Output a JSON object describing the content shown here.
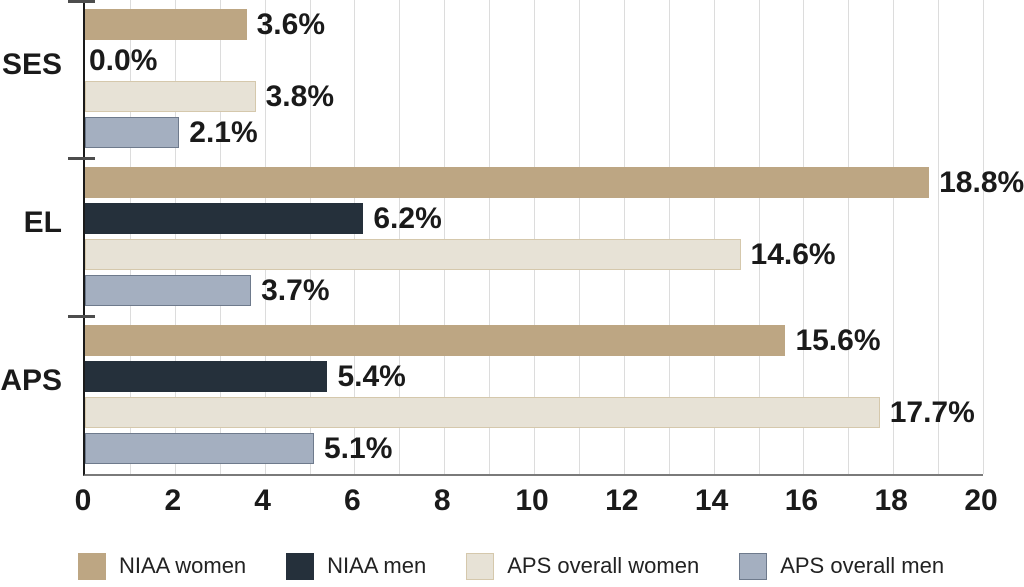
{
  "chart_data": {
    "type": "bar",
    "orientation": "horizontal",
    "categories": [
      "SES",
      "EL",
      "APS"
    ],
    "series": [
      {
        "name": "NIAA women",
        "color": "#bda683",
        "border_color": "#bda683",
        "values": [
          3.6,
          18.8,
          15.6
        ]
      },
      {
        "name": "NIAA men",
        "color": "#25303b",
        "border_color": "#25303b",
        "values": [
          0.0,
          6.2,
          5.4
        ]
      },
      {
        "name": "APS overall women",
        "color": "#e7e2d6",
        "border_color": "#d5c8ac",
        "values": [
          3.8,
          14.6,
          17.7
        ]
      },
      {
        "name": "APS overall men",
        "color": "#a4afc0",
        "border_color": "#6e7a8c",
        "values": [
          2.1,
          3.7,
          5.1
        ]
      }
    ],
    "value_labels": [
      [
        "3.6%",
        "0.0%",
        "3.8%",
        "2.1%"
      ],
      [
        "18.8%",
        "6.2%",
        "14.6%",
        "3.7%"
      ],
      [
        "15.6%",
        "5.4%",
        "17.7%",
        "5.1%"
      ]
    ],
    "x_axis": {
      "min": 0,
      "max": 20,
      "tick_step": 2,
      "grid_step": 1,
      "tick_labels": [
        "0",
        "2",
        "4",
        "6",
        "8",
        "10",
        "12",
        "14",
        "16",
        "18",
        "20"
      ]
    },
    "grid": true,
    "legend_position": "bottom",
    "legend_items": [
      "NIAA women",
      "NIAA men",
      "APS overall women",
      "APS overall men"
    ]
  },
  "colors": {
    "background": "#ffffff",
    "grid_line": "#dcdcdc",
    "y_axis_line": "#1a1a1a",
    "x_axis_line": "#7a7a7a",
    "boundary_tick": "#4d4d4d",
    "text": "#1a1a1a"
  }
}
